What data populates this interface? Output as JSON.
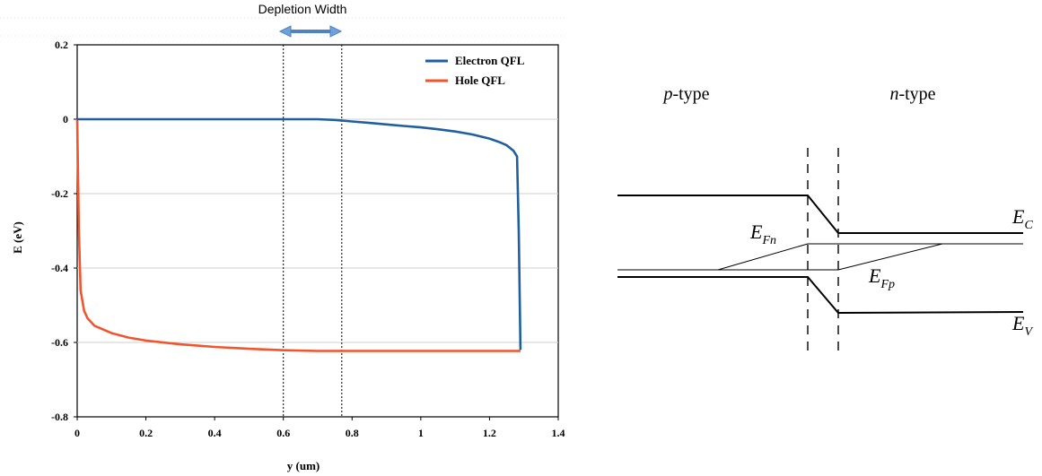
{
  "annotation": {
    "text": "Depletion Width"
  },
  "chart_data": [
    {
      "type": "line",
      "xlabel": "y (um)",
      "ylabel": "E (eV)",
      "xlim": [
        0,
        1.4
      ],
      "ylim": [
        -0.8,
        0.2
      ],
      "xticks": [
        "0",
        "0.2",
        "0.4",
        "0.6",
        "0.8",
        "1",
        "1.2",
        "1.4"
      ],
      "yticks": [
        "0.2",
        "0",
        "-0.2",
        "-0.4",
        "-0.6",
        "-0.8"
      ],
      "grid": "horizontal",
      "legend_position": "top-right",
      "depletion_edges": [
        0.6,
        0.77
      ],
      "series": [
        {
          "name": "Electron QFL",
          "color": "#1f5fa0",
          "x": [
            0,
            0.1,
            0.2,
            0.3,
            0.4,
            0.5,
            0.6,
            0.7,
            0.75,
            0.8,
            0.85,
            0.9,
            0.95,
            1.0,
            1.05,
            1.1,
            1.15,
            1.2,
            1.23,
            1.25,
            1.27,
            1.28,
            1.285,
            1.29
          ],
          "y": [
            0,
            0,
            0,
            0,
            0,
            0,
            0,
            0,
            -0.002,
            -0.006,
            -0.01,
            -0.014,
            -0.018,
            -0.022,
            -0.027,
            -0.033,
            -0.041,
            -0.052,
            -0.062,
            -0.07,
            -0.085,
            -0.1,
            -0.3,
            -0.62
          ]
        },
        {
          "name": "Hole QFL",
          "color": "#f2542d",
          "x": [
            0,
            0.005,
            0.01,
            0.02,
            0.03,
            0.05,
            0.1,
            0.15,
            0.2,
            0.3,
            0.4,
            0.5,
            0.6,
            0.7,
            0.8,
            0.9,
            1.0,
            1.1,
            1.2,
            1.29
          ],
          "y": [
            0,
            -0.3,
            -0.46,
            -0.515,
            -0.535,
            -0.555,
            -0.575,
            -0.587,
            -0.595,
            -0.605,
            -0.612,
            -0.617,
            -0.621,
            -0.623,
            -0.623,
            -0.623,
            -0.623,
            -0.623,
            -0.623,
            -0.623
          ]
        }
      ]
    },
    {
      "type": "band-diagram",
      "labels": {
        "p_italic": "p",
        "p_rest": "-type",
        "n_italic": "n",
        "n_rest": "-type",
        "ec_main": "E",
        "ec_sub": "C",
        "efn_main": "E",
        "efn_sub": "Fn",
        "efp_main": "E",
        "efp_sub": "Fp",
        "ev_main": "E",
        "ev_sub": "V"
      }
    }
  ]
}
